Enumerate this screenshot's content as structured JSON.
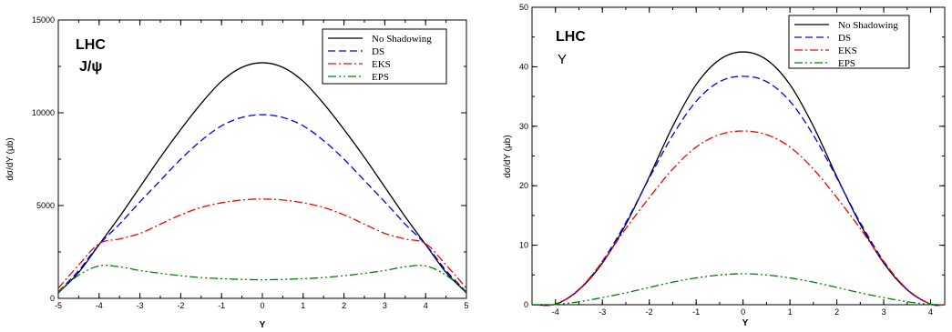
{
  "chart_data": [
    {
      "type": "line",
      "xlabel": "Y",
      "ylabel": "dσ/dY (μb)",
      "annotation_line1": "LHC",
      "annotation_line2": "J/ψ",
      "xlim": [
        -5,
        5
      ],
      "ylim": [
        0,
        15000
      ],
      "x_ticks": [
        -5,
        -4,
        -3,
        -2,
        -1,
        0,
        1,
        2,
        3,
        4,
        5
      ],
      "y_ticks": [
        0,
        5000,
        10000,
        15000
      ],
      "legend_position": "top-right",
      "series": [
        {
          "name": "No Shadowing",
          "color": "#000000",
          "dash": "solid",
          "x": [
            -5,
            -4.5,
            -4,
            -3.5,
            -3,
            -2.5,
            -2,
            -1.5,
            -1,
            -0.5,
            0,
            0.5,
            1,
            1.5,
            2,
            2.5,
            3,
            3.5,
            4,
            4.5,
            5
          ],
          "y": [
            300,
            1400,
            2900,
            4400,
            6000,
            7600,
            9100,
            10500,
            11700,
            12450,
            12700,
            12450,
            11700,
            10500,
            9100,
            7600,
            6000,
            4400,
            2900,
            1400,
            300
          ]
        },
        {
          "name": "DS",
          "color": "#0000ff",
          "dash": "dashed",
          "x": [
            -5,
            -4.5,
            -4,
            -3.5,
            -3,
            -2.5,
            -2,
            -1.5,
            -1,
            -0.5,
            0,
            0.5,
            1,
            1.5,
            2,
            2.5,
            3,
            3.5,
            4,
            4.5,
            5
          ],
          "y": [
            350,
            1500,
            2900,
            4000,
            5200,
            6350,
            7500,
            8500,
            9300,
            9750,
            9900,
            9750,
            9300,
            8500,
            7500,
            6350,
            5200,
            4000,
            2900,
            1500,
            350
          ]
        },
        {
          "name": "EKS",
          "color": "#ff0000",
          "dash": "dash-dot",
          "x": [
            -5,
            -4.5,
            -4,
            -3.5,
            -3,
            -2.5,
            -2,
            -1.5,
            -1,
            -0.5,
            0,
            0.5,
            1,
            1.5,
            2,
            2.5,
            3,
            3.5,
            4,
            4.5,
            5
          ],
          "y": [
            550,
            1800,
            2950,
            3200,
            3500,
            4000,
            4500,
            4900,
            5150,
            5300,
            5350,
            5300,
            5150,
            4900,
            4500,
            4000,
            3500,
            3200,
            2950,
            1800,
            550
          ]
        },
        {
          "name": "EPS",
          "color": "#008000",
          "dash": "dash-dot-dot",
          "x": [
            -5,
            -4.5,
            -4,
            -3.5,
            -3,
            -2.5,
            -2,
            -1.5,
            -1,
            -0.5,
            0,
            0.5,
            1,
            1.5,
            2,
            2.5,
            3,
            3.5,
            4,
            4.5,
            5
          ],
          "y": [
            350,
            1250,
            1750,
            1700,
            1500,
            1350,
            1220,
            1120,
            1060,
            1020,
            1000,
            1020,
            1060,
            1120,
            1220,
            1350,
            1500,
            1700,
            1750,
            1250,
            350
          ]
        }
      ]
    },
    {
      "type": "line",
      "xlabel": "Y",
      "ylabel": "dσ/dY (μb)",
      "annotation_line1": "LHC",
      "annotation_line2": "Υ",
      "xlim": [
        -4.5,
        4.3
      ],
      "ylim": [
        0,
        50
      ],
      "x_ticks": [
        -4,
        -3,
        -2,
        -1,
        0,
        1,
        2,
        3,
        4
      ],
      "y_ticks": [
        0,
        10,
        20,
        30,
        40,
        50
      ],
      "legend_position": "top-right",
      "series": [
        {
          "name": "No Shadowing",
          "color": "#000000",
          "dash": "solid",
          "x": [
            -4.5,
            -4,
            -3.5,
            -3,
            -2.5,
            -2,
            -1.5,
            -1,
            -0.5,
            0,
            0.5,
            1,
            1.5,
            2,
            2.5,
            3,
            3.5,
            4,
            4.3
          ],
          "y": [
            0.0,
            0.1,
            2.5,
            7.0,
            13.5,
            21.5,
            30.0,
            37.0,
            41.2,
            42.5,
            41.2,
            37.0,
            30.0,
            21.5,
            13.5,
            7.0,
            2.5,
            0.1,
            0.0
          ]
        },
        {
          "name": "DS",
          "color": "#0000ff",
          "dash": "dashed",
          "x": [
            -4.5,
            -4,
            -3.5,
            -3,
            -2.5,
            -2,
            -1.5,
            -1,
            -0.5,
            0,
            0.5,
            1,
            1.5,
            2,
            2.5,
            3,
            3.5,
            4,
            4.3
          ],
          "y": [
            0.0,
            0.1,
            2.5,
            7.3,
            13.8,
            21.3,
            28.5,
            34.2,
            37.5,
            38.4,
            37.5,
            34.2,
            28.5,
            21.3,
            13.8,
            7.3,
            2.5,
            0.1,
            0.0
          ]
        },
        {
          "name": "EKS",
          "color": "#ff0000",
          "dash": "dash-dot",
          "x": [
            -4.5,
            -4,
            -3.5,
            -3,
            -2.5,
            -2,
            -1.5,
            -1,
            -0.5,
            0,
            0.5,
            1,
            1.5,
            2,
            2.5,
            3,
            3.5,
            4,
            4.3
          ],
          "y": [
            0.0,
            0.1,
            2.6,
            7.2,
            12.8,
            18.0,
            22.8,
            26.5,
            28.6,
            29.2,
            28.6,
            26.5,
            22.8,
            18.0,
            12.8,
            7.2,
            2.6,
            0.1,
            0.0
          ]
        },
        {
          "name": "EPS",
          "color": "#008000",
          "dash": "dash-dot-dot",
          "x": [
            -4.5,
            -4,
            -3.5,
            -3,
            -2.5,
            -2,
            -1.5,
            -1,
            -0.5,
            0,
            0.5,
            1,
            1.5,
            2,
            2.5,
            3,
            3.5,
            4,
            4.3
          ],
          "y": [
            0.0,
            0.05,
            0.5,
            1.2,
            2.0,
            2.9,
            3.8,
            4.5,
            5.0,
            5.2,
            5.0,
            4.5,
            3.8,
            2.9,
            2.0,
            1.2,
            0.5,
            0.05,
            0.0
          ]
        }
      ]
    }
  ]
}
